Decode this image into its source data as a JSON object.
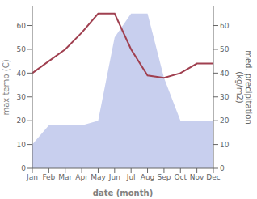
{
  "chart_data": {
    "type": "line",
    "categories": [
      "Jan",
      "Feb",
      "Mar",
      "Apr",
      "May",
      "Jun",
      "Jul",
      "Aug",
      "Sep",
      "Oct",
      "Nov",
      "Dec"
    ],
    "series": [
      {
        "type": "area",
        "axis": "y2",
        "color": "#c8cfee",
        "values": [
          10,
          18,
          18,
          18,
          20,
          55,
          65,
          65,
          38,
          20,
          20,
          20
        ]
      },
      {
        "type": "line",
        "color": "#a04050",
        "values": [
          40,
          45,
          50,
          57,
          65,
          65,
          50,
          39,
          38,
          40,
          44,
          44
        ]
      }
    ],
    "xlabel": "date (month)",
    "ylabel": "max temp (C)",
    "y2label": "med. precipitation\n(kg/m2)",
    "ylim": [
      0,
      68
    ],
    "yticks": [
      0,
      10,
      20,
      30,
      40,
      50,
      60
    ],
    "y2lim": [
      0,
      68
    ],
    "y2ticks": [
      0,
      10,
      20,
      30,
      40,
      50,
      60
    ],
    "grid": false
  }
}
